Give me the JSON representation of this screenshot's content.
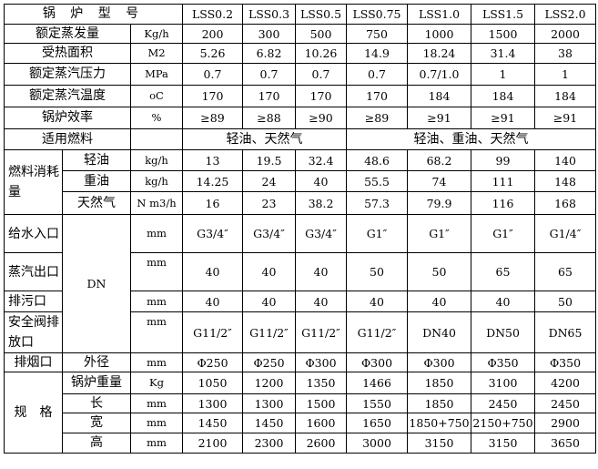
{
  "header": {
    "title": "锅 炉 型 号",
    "models": [
      "LSS0.2",
      "LSS0.3",
      "LSS0.5",
      "LSS0.75",
      "LSS1.0",
      "LSS1.5",
      "LSS2.0"
    ]
  },
  "basic_rows": [
    {
      "label": "额定蒸发量",
      "unit": "Kg/h",
      "values": [
        "200",
        "300",
        "500",
        "750",
        "1000",
        "1500",
        "2000"
      ]
    },
    {
      "label": "受热面积",
      "unit": "M2",
      "values": [
        "5.26",
        "6.82",
        "10.26",
        "14.9",
        "18.24",
        "31.4",
        "38"
      ]
    },
    {
      "label": "额定蒸汽压力",
      "unit": "MPa",
      "values": [
        "0.7",
        "0.7",
        "0.7",
        "0.7",
        "0.7/1.0",
        "1",
        "1"
      ]
    },
    {
      "label": "额定蒸汽温度",
      "unit": "oC",
      "values": [
        "170",
        "170",
        "170",
        "170",
        "184",
        "184",
        "184"
      ]
    },
    {
      "label": "锅炉效率",
      "unit": "%",
      "values": [
        "≥89",
        "≥88",
        "≥90",
        "≥89",
        "≥91",
        "≥91",
        "≥91"
      ]
    }
  ],
  "fuel": {
    "label": "适用燃料",
    "unit": "",
    "group1": "轻油、天然气",
    "group2": "轻油、重油、天然气"
  },
  "consumption": {
    "label": "燃料消耗量",
    "rows": [
      {
        "label": "轻油",
        "unit": "kg/h",
        "values": [
          "13",
          "19.5",
          "32.4",
          "48.6",
          "68.2",
          "99",
          "140"
        ]
      },
      {
        "label": "重油",
        "unit": "kg/h",
        "values": [
          "14.25",
          "24",
          "40",
          "55.5",
          "74",
          "111",
          "148"
        ]
      },
      {
        "label": "天然气",
        "unit": "N m3/h",
        "values": [
          "16",
          "23",
          "38.2",
          "57.3",
          "79.9",
          "116",
          "168"
        ]
      }
    ]
  },
  "pipes": {
    "group_label": "DN",
    "rows": [
      {
        "label": "给水入口",
        "unit": "mm",
        "values": [
          "G3/4″",
          "G3/4″",
          "G3/4″",
          "G1″",
          "G1″",
          "G1″",
          "G1/4″"
        ]
      },
      {
        "label": "蒸汽出口",
        "unit": "mm",
        "values": [
          "40",
          "40",
          "40",
          "50",
          "50",
          "65",
          "65"
        ]
      },
      {
        "label": "排污口",
        "unit": "mm",
        "values": [
          "40",
          "40",
          "40",
          "40",
          "40",
          "40",
          "50"
        ]
      },
      {
        "label": "安全阀排放口",
        "unit": "mm",
        "values": [
          "G11/2″",
          "G11/2″",
          "G11/2″",
          "G11/2″",
          "DN40",
          "DN50",
          "DN65"
        ]
      }
    ]
  },
  "chimney": {
    "label": "排烟口",
    "sub": "外径",
    "unit": "mm",
    "values": [
      "Φ250",
      "Φ250",
      "Φ300",
      "Φ300",
      "Φ300",
      "Φ350",
      "Φ350"
    ]
  },
  "specs": {
    "label": "规　格",
    "rows": [
      {
        "label": "锅炉重量",
        "unit": "Kg",
        "values": [
          "1050",
          "1200",
          "1350",
          "1466",
          "1850",
          "3100",
          "4200"
        ]
      },
      {
        "label": "长",
        "unit": "mm",
        "values": [
          "1300",
          "1300",
          "1500",
          "1550",
          "1850",
          "2450",
          "2450"
        ]
      },
      {
        "label": "宽",
        "unit": "mm",
        "values": [
          "1450",
          "1450",
          "1600",
          "1650",
          "1850+750",
          "2150+750",
          "2900"
        ]
      },
      {
        "label": "高",
        "unit": "mm",
        "values": [
          "2100",
          "2300",
          "2600",
          "3000",
          "3150",
          "3150",
          "3650"
        ]
      }
    ]
  }
}
